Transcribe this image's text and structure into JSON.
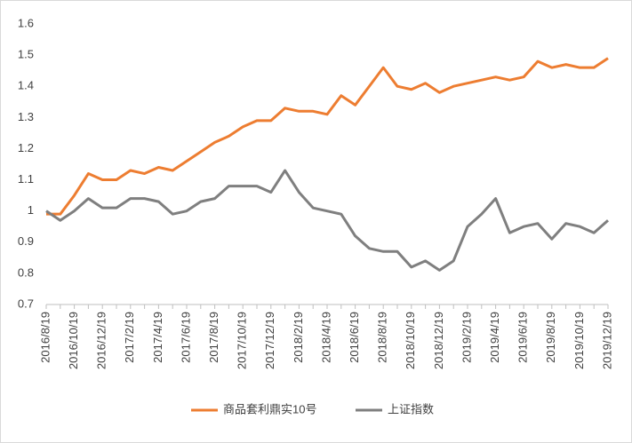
{
  "chart_data": {
    "type": "line",
    "categories": [
      "2016/8/19",
      null,
      "2016/10/19",
      null,
      "2016/12/19",
      null,
      "2017/2/19",
      null,
      "2017/4/19",
      null,
      "2017/6/19",
      null,
      "2017/8/19",
      null,
      "2017/10/19",
      null,
      "2017/12/19",
      null,
      "2018/2/19",
      null,
      "2018/4/19",
      null,
      "2018/6/19",
      null,
      "2018/8/19",
      null,
      "2018/10/19",
      null,
      "2018/12/19",
      null,
      "2019/2/19",
      null,
      "2019/4/19",
      null,
      "2019/6/19",
      null,
      "2019/8/19",
      null,
      "2019/10/19",
      null,
      "2019/12/19"
    ],
    "series": [
      {
        "name": "商品套利鼎实10号",
        "color": "#ed7d31",
        "values": [
          0.99,
          0.99,
          1.05,
          1.12,
          1.1,
          1.1,
          1.13,
          1.12,
          1.14,
          1.13,
          1.16,
          1.19,
          1.22,
          1.24,
          1.27,
          1.29,
          1.29,
          1.33,
          1.32,
          1.32,
          1.31,
          1.37,
          1.34,
          1.4,
          1.46,
          1.4,
          1.39,
          1.41,
          1.38,
          1.4,
          1.41,
          1.42,
          1.43,
          1.42,
          1.43,
          1.48,
          1.46,
          1.47,
          1.46,
          1.46,
          1.49
        ]
      },
      {
        "name": "上证指数",
        "color": "#7f7f7f",
        "values": [
          1.0,
          0.97,
          1.0,
          1.04,
          1.01,
          1.01,
          1.04,
          1.04,
          1.03,
          0.99,
          1.0,
          1.03,
          1.04,
          1.08,
          1.08,
          1.08,
          1.06,
          1.13,
          1.06,
          1.01,
          1.0,
          0.99,
          0.92,
          0.88,
          0.87,
          0.87,
          0.82,
          0.84,
          0.81,
          0.84,
          0.95,
          0.99,
          1.04,
          0.93,
          0.95,
          0.96,
          0.91,
          0.96,
          0.95,
          0.93,
          0.97
        ]
      }
    ],
    "ylim": [
      0.7,
      1.6
    ],
    "yticks": [
      0.7,
      0.8,
      0.9,
      1,
      1.1,
      1.2,
      1.3,
      1.4,
      1.5,
      1.6
    ],
    "grid": false,
    "legend": "bottom"
  }
}
